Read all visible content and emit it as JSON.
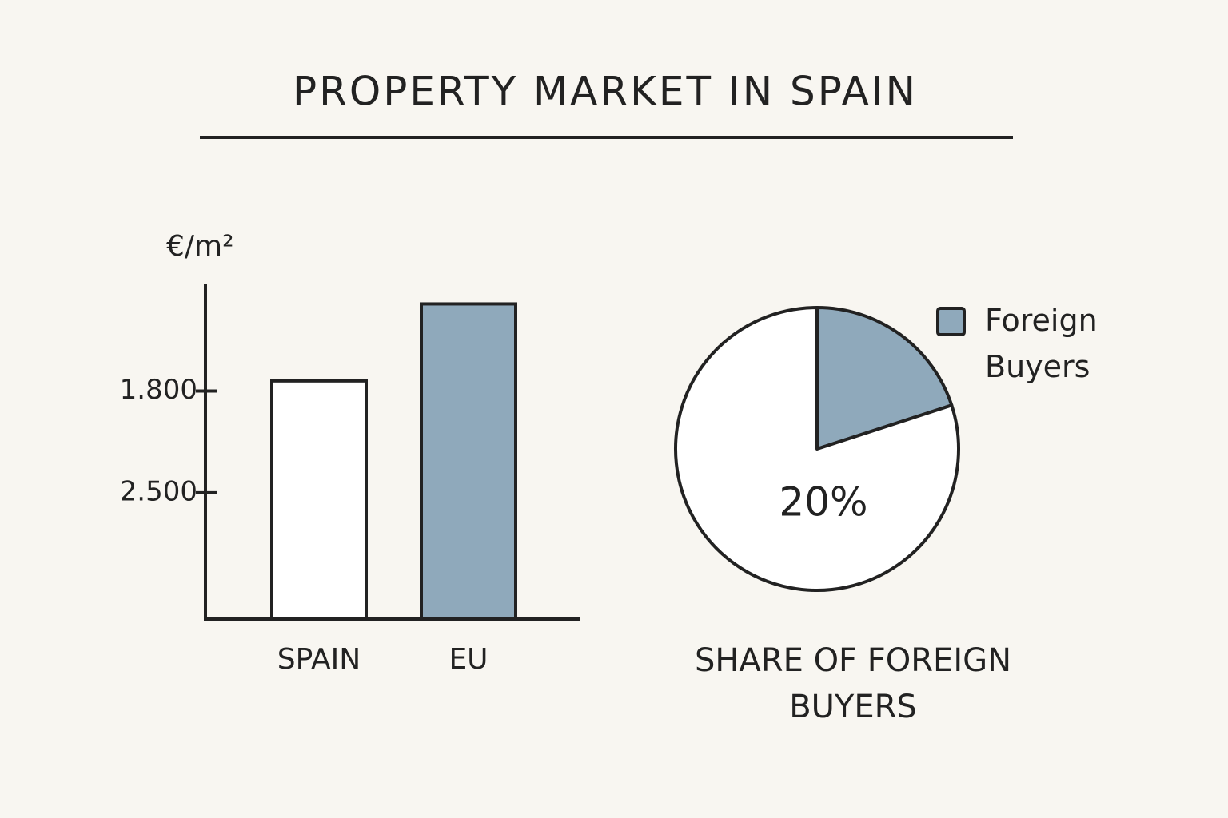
{
  "title": "PROPERTY MARKET IN SPAIN",
  "chart_data": [
    {
      "type": "bar",
      "ylabel": "€/m²",
      "categories": [
        "SPAIN",
        "EU"
      ],
      "values": [
        1730,
        1200
      ],
      "colors": [
        "#ffffff",
        "#8fa9bb"
      ],
      "ylim": [
        3370,
        1060
      ],
      "yticks": [
        {
          "value": 1800,
          "label": "1.800"
        },
        {
          "value": 2500,
          "label": "2.500"
        }
      ]
    },
    {
      "type": "pie",
      "title": "SHARE OF FOREIGN BUYERS",
      "categories": [
        "Foreign Buyers",
        null
      ],
      "values": [
        20,
        80
      ],
      "value_labels": [
        "20%",
        null
      ],
      "colors": [
        "#8fa9bb",
        "#ffffff"
      ],
      "legend": "upper right"
    }
  ]
}
